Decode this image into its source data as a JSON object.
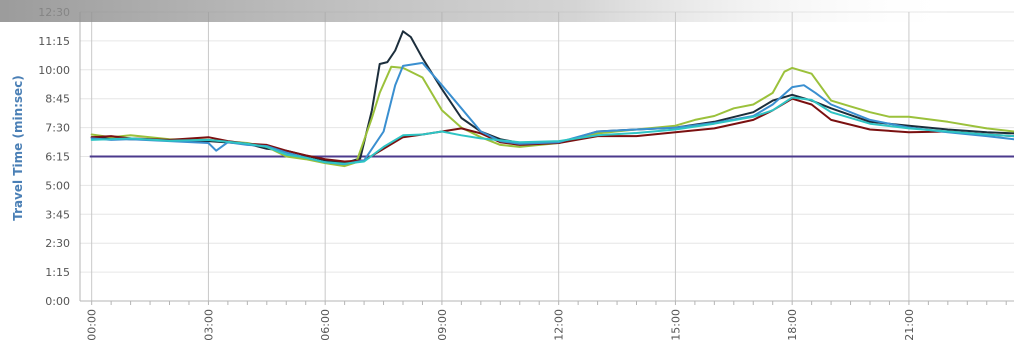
{
  "chart_data": {
    "type": "line",
    "ylabel": "Travel Time (min:sec)",
    "xlabel": "",
    "y_ticks": [
      "0:00",
      "1:15",
      "2:30",
      "3:45",
      "5:00",
      "6:15",
      "7:30",
      "8:45",
      "10:00",
      "11:15",
      "12:30"
    ],
    "x_ticks": [
      "00:00",
      "03:00",
      "06:00",
      "09:00",
      "12:00",
      "15:00",
      "18:00",
      "21:00"
    ],
    "ylim_seconds": [
      0,
      750
    ],
    "xlim_hours": [
      -0.3,
      23.7
    ],
    "reference_line": {
      "y_seconds": 375,
      "color": "#4b3a8c"
    },
    "colors": {
      "axis_label": "#4a7fb5",
      "grid": "#c8c8c8"
    },
    "series": [
      {
        "color": "#1c2e3c",
        "points": [
          [
            0,
            425
          ],
          [
            1,
            420
          ],
          [
            2,
            418
          ],
          [
            3,
            415
          ],
          [
            4,
            408
          ],
          [
            4.5,
            395
          ],
          [
            5,
            390
          ],
          [
            6,
            365
          ],
          [
            6.5,
            358
          ],
          [
            6.9,
            370
          ],
          [
            7.2,
            495
          ],
          [
            7.4,
            615
          ],
          [
            7.6,
            620
          ],
          [
            7.8,
            650
          ],
          [
            8,
            700
          ],
          [
            8.2,
            685
          ],
          [
            8.5,
            630
          ],
          [
            9,
            550
          ],
          [
            9.5,
            475
          ],
          [
            10,
            440
          ],
          [
            10.5,
            420
          ],
          [
            11,
            410
          ],
          [
            12,
            410
          ],
          [
            13,
            440
          ],
          [
            14,
            445
          ],
          [
            15,
            450
          ],
          [
            16,
            465
          ],
          [
            17,
            490
          ],
          [
            17.5,
            520
          ],
          [
            18,
            535
          ],
          [
            18.5,
            520
          ],
          [
            19,
            500
          ],
          [
            20,
            465
          ],
          [
            21,
            455
          ],
          [
            22,
            445
          ],
          [
            23,
            438
          ],
          [
            23.7,
            435
          ]
        ]
      },
      {
        "color": "#9bc13b",
        "points": [
          [
            0,
            432
          ],
          [
            0.5,
            425
          ],
          [
            1,
            430
          ],
          [
            2,
            420
          ],
          [
            3,
            418
          ],
          [
            4,
            410
          ],
          [
            4.5,
            400
          ],
          [
            5,
            375
          ],
          [
            5.5,
            368
          ],
          [
            6,
            358
          ],
          [
            6.5,
            350
          ],
          [
            6.8,
            360
          ],
          [
            7.2,
            475
          ],
          [
            7.4,
            540
          ],
          [
            7.7,
            608
          ],
          [
            8,
            605
          ],
          [
            8.5,
            580
          ],
          [
            9,
            495
          ],
          [
            9.5,
            450
          ],
          [
            10,
            425
          ],
          [
            10.5,
            405
          ],
          [
            11,
            400
          ],
          [
            12,
            410
          ],
          [
            13,
            435
          ],
          [
            14,
            445
          ],
          [
            15,
            455
          ],
          [
            15.5,
            470
          ],
          [
            16,
            480
          ],
          [
            16.5,
            500
          ],
          [
            17,
            510
          ],
          [
            17.5,
            540
          ],
          [
            17.8,
            595
          ],
          [
            18,
            605
          ],
          [
            18.5,
            590
          ],
          [
            19,
            520
          ],
          [
            19.5,
            505
          ],
          [
            20,
            490
          ],
          [
            20.5,
            478
          ],
          [
            21,
            478
          ],
          [
            22,
            465
          ],
          [
            23,
            448
          ],
          [
            23.7,
            440
          ]
        ]
      },
      {
        "color": "#7a1010",
        "points": [
          [
            0,
            425
          ],
          [
            0.5,
            428
          ],
          [
            1,
            422
          ],
          [
            2,
            418
          ],
          [
            3,
            425
          ],
          [
            3.5,
            415
          ],
          [
            4,
            408
          ],
          [
            4.5,
            405
          ],
          [
            5,
            390
          ],
          [
            5.5,
            378
          ],
          [
            6,
            368
          ],
          [
            6.5,
            362
          ],
          [
            7,
            365
          ],
          [
            7.5,
            395
          ],
          [
            8,
            425
          ],
          [
            8.5,
            432
          ],
          [
            9,
            440
          ],
          [
            9.5,
            448
          ],
          [
            10,
            435
          ],
          [
            10.5,
            412
          ],
          [
            11,
            405
          ],
          [
            12,
            410
          ],
          [
            13,
            428
          ],
          [
            14,
            428
          ],
          [
            15,
            438
          ],
          [
            16,
            448
          ],
          [
            17,
            470
          ],
          [
            17.5,
            495
          ],
          [
            18,
            525
          ],
          [
            18.5,
            510
          ],
          [
            19,
            470
          ],
          [
            20,
            445
          ],
          [
            21,
            438
          ],
          [
            22,
            440
          ],
          [
            23,
            432
          ],
          [
            23.7,
            428
          ]
        ]
      },
      {
        "color": "#3a8fd0",
        "points": [
          [
            0,
            422
          ],
          [
            0.5,
            418
          ],
          [
            1,
            420
          ],
          [
            2,
            415
          ],
          [
            3,
            410
          ],
          [
            3.2,
            390
          ],
          [
            3.5,
            412
          ],
          [
            4,
            405
          ],
          [
            4.5,
            402
          ],
          [
            5,
            385
          ],
          [
            5.5,
            372
          ],
          [
            6,
            360
          ],
          [
            6.5,
            355
          ],
          [
            7,
            365
          ],
          [
            7.5,
            440
          ],
          [
            7.8,
            560
          ],
          [
            8,
            610
          ],
          [
            8.5,
            618
          ],
          [
            9,
            560
          ],
          [
            9.5,
            500
          ],
          [
            10,
            440
          ],
          [
            10.5,
            415
          ],
          [
            11,
            408
          ],
          [
            12,
            412
          ],
          [
            13,
            440
          ],
          [
            14,
            445
          ],
          [
            15,
            450
          ],
          [
            16,
            462
          ],
          [
            17,
            480
          ],
          [
            17.5,
            510
          ],
          [
            18,
            555
          ],
          [
            18.3,
            560
          ],
          [
            18.6,
            540
          ],
          [
            19,
            510
          ],
          [
            20,
            470
          ],
          [
            21,
            450
          ],
          [
            22,
            438
          ],
          [
            23,
            428
          ],
          [
            23.7,
            420
          ]
        ]
      },
      {
        "color": "#2ec4c4",
        "points": [
          [
            0,
            418
          ],
          [
            1,
            422
          ],
          [
            2,
            416
          ],
          [
            3,
            418
          ],
          [
            4,
            408
          ],
          [
            4.5,
            400
          ],
          [
            5,
            380
          ],
          [
            5.5,
            372
          ],
          [
            6,
            360
          ],
          [
            6.5,
            356
          ],
          [
            7,
            362
          ],
          [
            7.5,
            400
          ],
          [
            8,
            430
          ],
          [
            8.5,
            432
          ],
          [
            9,
            440
          ],
          [
            9.5,
            430
          ],
          [
            10,
            422
          ],
          [
            11,
            412
          ],
          [
            12,
            415
          ],
          [
            13,
            430
          ],
          [
            14,
            436
          ],
          [
            15,
            445
          ],
          [
            16,
            460
          ],
          [
            17,
            478
          ],
          [
            17.5,
            495
          ],
          [
            18,
            528
          ],
          [
            18.5,
            522
          ],
          [
            19,
            490
          ],
          [
            20,
            460
          ],
          [
            21,
            448
          ],
          [
            22,
            440
          ],
          [
            23,
            432
          ],
          [
            23.7,
            428
          ]
        ]
      }
    ]
  }
}
